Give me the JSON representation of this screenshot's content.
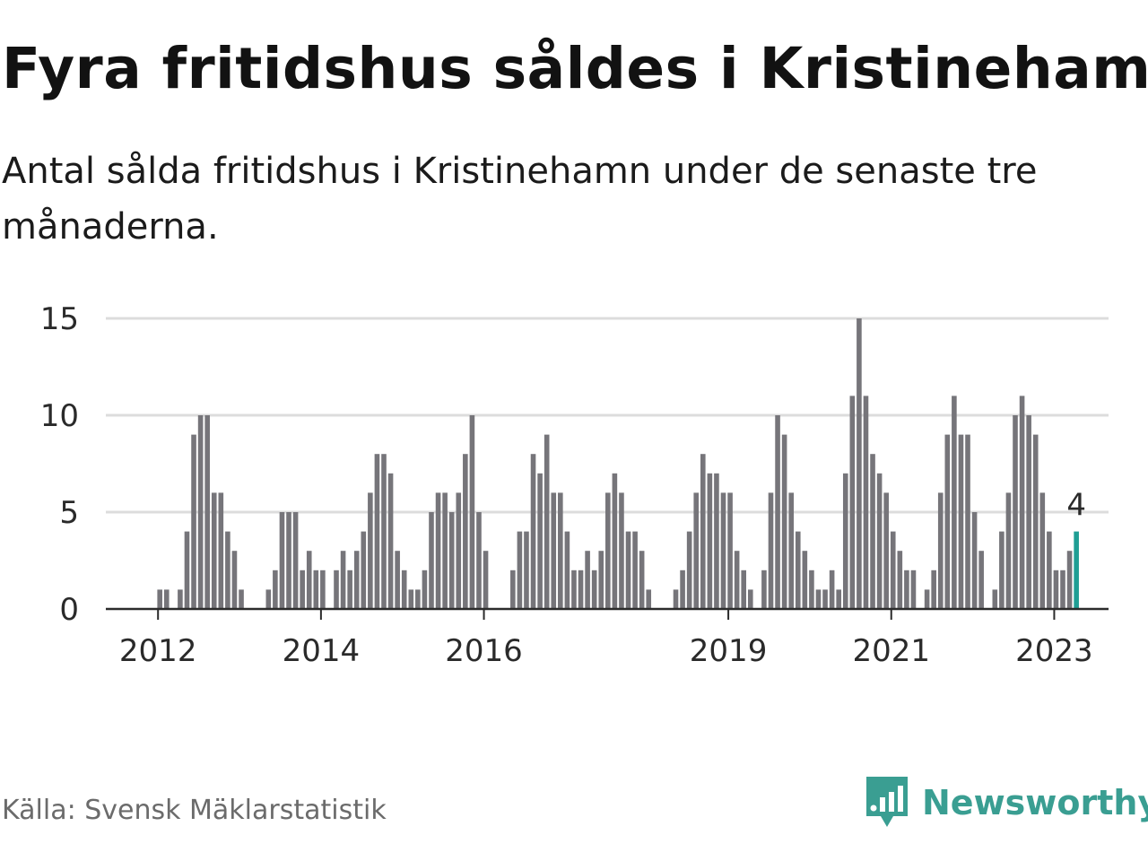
{
  "title": "Fyra fritidshus såldes i Kristinehamn",
  "subtitle": "Antal sålda fritidshus i Kristinehamn under de senaste tre månaderna.",
  "source": "Källa: Svensk Mäklarstatistik",
  "brand": {
    "name": "Newsworthy",
    "icon": "newsworthy-logo-icon"
  },
  "colors": {
    "bar": "#76757a",
    "highlight": "#1f9e94",
    "grid": "#dcdcdc",
    "brand": "#3a9e92"
  },
  "chart_data": {
    "type": "bar",
    "title": "Fyra fritidshus såldes i Kristinehamn",
    "xlabel": "",
    "ylabel": "",
    "ylim": [
      0,
      15
    ],
    "y_ticks": [
      0,
      5,
      10,
      15
    ],
    "x_tick_labels": [
      "2012",
      "2014",
      "2016",
      "2019",
      "2021",
      "2023"
    ],
    "grid": true,
    "legend": "none",
    "highlight_last": {
      "label": "4",
      "value": 4
    },
    "values": [
      0,
      0,
      0,
      0,
      0,
      0,
      0,
      1,
      1,
      0,
      1,
      4,
      9,
      10,
      10,
      6,
      6,
      4,
      3,
      1,
      0,
      0,
      0,
      1,
      2,
      5,
      5,
      5,
      2,
      3,
      2,
      2,
      0,
      2,
      3,
      2,
      3,
      4,
      6,
      8,
      8,
      7,
      3,
      2,
      1,
      1,
      2,
      5,
      6,
      6,
      5,
      6,
      8,
      10,
      5,
      3,
      0,
      0,
      0,
      2,
      4,
      4,
      8,
      7,
      9,
      6,
      6,
      4,
      2,
      2,
      3,
      2,
      3,
      6,
      7,
      6,
      4,
      4,
      3,
      1,
      0,
      0,
      0,
      1,
      2,
      4,
      6,
      8,
      7,
      7,
      6,
      6,
      3,
      2,
      1,
      0,
      2,
      6,
      10,
      9,
      6,
      4,
      3,
      2,
      1,
      1,
      2,
      1,
      7,
      11,
      15,
      11,
      8,
      7,
      6,
      4,
      3,
      2,
      2,
      0,
      1,
      2,
      6,
      9,
      11,
      9,
      9,
      5,
      3,
      0,
      1,
      4,
      6,
      10,
      11,
      10,
      9,
      6,
      4,
      2,
      2,
      3,
      4
    ]
  }
}
